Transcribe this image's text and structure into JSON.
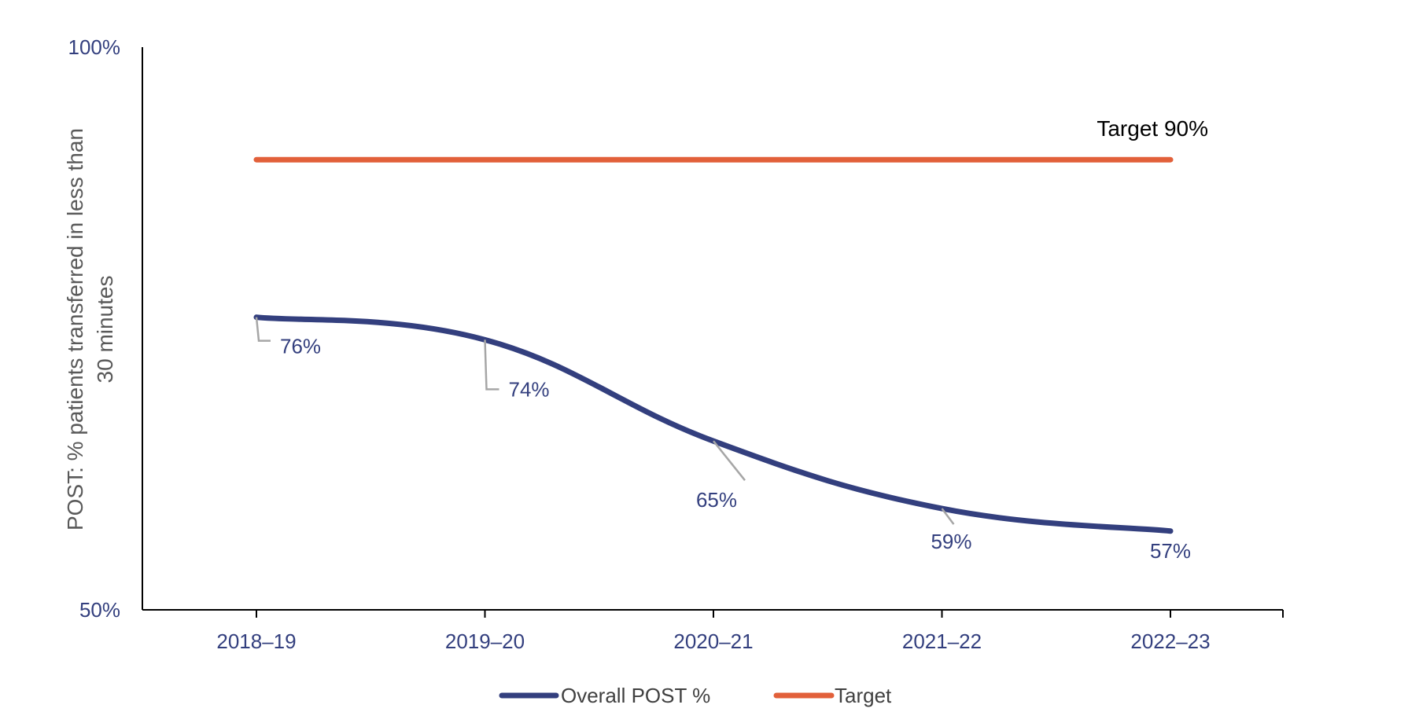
{
  "chart_data": {
    "type": "line",
    "categories": [
      "2018–19",
      "2019–20",
      "2020–21",
      "2021–22",
      "2022–23"
    ],
    "series": [
      {
        "name": "Overall POST %",
        "values": [
          76,
          74,
          65,
          59,
          57
        ],
        "labels": [
          "76%",
          "74%",
          "65%",
          "59%",
          "57%"
        ],
        "color": "#333F7E"
      },
      {
        "name": "Target",
        "values": [
          90,
          90,
          90,
          90,
          90
        ],
        "color": "#E2603A"
      }
    ],
    "ylabel": "POST: % patients transferred in less than 30 minutes",
    "ylabel_lines": [
      "POST: % patients transferred in less than",
      "30 minutes"
    ],
    "ylim": [
      50,
      100
    ],
    "ytick_labels": [
      "50%",
      "100%"
    ],
    "annotation": "Target 90%",
    "grid": false,
    "legend_position": "bottom"
  }
}
